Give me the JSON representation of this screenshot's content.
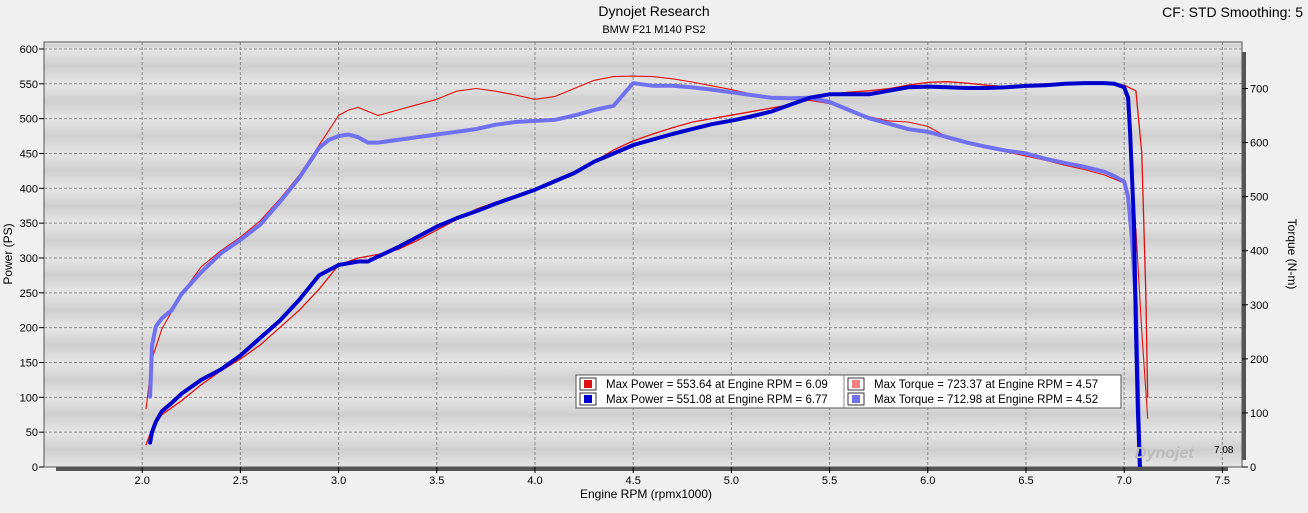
{
  "chart_data": {
    "type": "line",
    "title": "Dynojet Research",
    "subtitle": "BMW F21 M140 PS2",
    "corner_text": "CF: STD Smoothing: 5",
    "xlabel": "Engine RPM (rpmx1000)",
    "ylabel_left": "Power (PS)",
    "ylabel_right": "Torque (N-m)",
    "xlim": [
      1.5,
      7.6
    ],
    "ylim_left": [
      0,
      610
    ],
    "ylim_right": [
      0,
      786
    ],
    "x_ticks": [
      "2.0",
      "2.5",
      "3.0",
      "3.5",
      "4.0",
      "4.5",
      "5.0",
      "5.5",
      "6.0",
      "6.5",
      "7.0",
      "7.5"
    ],
    "y_ticks_left": [
      "0",
      "50",
      "100",
      "150",
      "200",
      "250",
      "300",
      "350",
      "400",
      "450",
      "500",
      "550",
      "600"
    ],
    "y_ticks_right": [
      "0",
      "100",
      "200",
      "300",
      "400",
      "500",
      "600",
      "700"
    ],
    "grid": true,
    "end_label": "7.08",
    "logo_text": "Dynojet",
    "legend": {
      "placement": "bottom-center",
      "entries": [
        {
          "color": "#e01010",
          "text": "Max Power = 553.64 at Engine RPM = 6.09"
        },
        {
          "color": "#f08080",
          "text": "Max Torque = 723.37 at Engine RPM = 4.57"
        },
        {
          "color": "#0000cc",
          "text": "Max Power = 551.08 at Engine RPM = 6.77"
        },
        {
          "color": "#7070f0",
          "text": "Max Torque = 712.98 at Engine RPM = 4.52"
        }
      ]
    },
    "series": [
      {
        "axis": "left",
        "color": "#e01010",
        "width": 1.3,
        "x": [
          2.02,
          2.05,
          2.1,
          2.2,
          2.3,
          2.4,
          2.5,
          2.6,
          2.7,
          2.8,
          2.9,
          3.0,
          3.1,
          3.2,
          3.3,
          3.4,
          3.5,
          3.6,
          3.7,
          3.8,
          3.9,
          4.0,
          4.1,
          4.2,
          4.3,
          4.4,
          4.5,
          4.6,
          4.7,
          4.8,
          4.9,
          5.0,
          5.1,
          5.2,
          5.3,
          5.4,
          5.5,
          5.6,
          5.7,
          5.8,
          5.9,
          6.0,
          6.1,
          6.2,
          6.3,
          6.4,
          6.5,
          6.6,
          6.7,
          6.8,
          6.9,
          7.0,
          7.06,
          7.09,
          7.11,
          7.12
        ],
        "y": [
          32,
          55,
          75,
          95,
          118,
          138,
          155,
          175,
          200,
          225,
          255,
          290,
          300,
          305,
          312,
          325,
          340,
          355,
          370,
          380,
          388,
          397,
          408,
          420,
          438,
          455,
          468,
          478,
          487,
          495,
          500,
          505,
          510,
          515,
          520,
          527,
          535,
          538,
          540,
          543,
          548,
          552,
          553,
          551,
          548,
          546,
          548,
          550,
          550,
          551,
          550,
          548,
          540,
          450,
          250,
          100
        ]
      },
      {
        "axis": "right",
        "color": "#e01010",
        "width": 1.1,
        "x": [
          2.02,
          2.05,
          2.1,
          2.2,
          2.3,
          2.4,
          2.5,
          2.6,
          2.7,
          2.8,
          2.9,
          3.0,
          3.05,
          3.1,
          3.2,
          3.3,
          3.4,
          3.5,
          3.6,
          3.7,
          3.8,
          3.9,
          4.0,
          4.1,
          4.2,
          4.3,
          4.4,
          4.5,
          4.6,
          4.7,
          4.8,
          4.9,
          5.0,
          5.1,
          5.2,
          5.3,
          5.4,
          5.5,
          5.6,
          5.7,
          5.8,
          5.9,
          6.0,
          6.1,
          6.2,
          6.3,
          6.4,
          6.5,
          6.6,
          6.7,
          6.8,
          6.9,
          7.0,
          7.06,
          7.09,
          7.12
        ],
        "y": [
          108,
          200,
          255,
          320,
          370,
          400,
          425,
          455,
          495,
          540,
          595,
          650,
          660,
          665,
          650,
          660,
          670,
          680,
          695,
          700,
          695,
          688,
          680,
          685,
          700,
          715,
          722,
          723,
          722,
          718,
          712,
          705,
          698,
          690,
          685,
          680,
          678,
          672,
          660,
          648,
          640,
          638,
          630,
          610,
          600,
          590,
          583,
          575,
          567,
          558,
          550,
          540,
          525,
          440,
          250,
          90
        ]
      },
      {
        "axis": "right",
        "color": "#7070f0",
        "width": 4,
        "x": [
          2.04,
          2.05,
          2.07,
          2.1,
          2.15,
          2.2,
          2.3,
          2.4,
          2.5,
          2.6,
          2.7,
          2.8,
          2.9,
          2.95,
          3.0,
          3.05,
          3.1,
          3.15,
          3.2,
          3.3,
          3.4,
          3.5,
          3.6,
          3.7,
          3.8,
          3.9,
          4.0,
          4.1,
          4.2,
          4.3,
          4.4,
          4.5,
          4.6,
          4.7,
          4.8,
          4.9,
          5.0,
          5.1,
          5.2,
          5.3,
          5.4,
          5.5,
          5.6,
          5.7,
          5.8,
          5.9,
          6.0,
          6.1,
          6.2,
          6.3,
          6.4,
          6.5,
          6.6,
          6.7,
          6.8,
          6.9,
          6.95,
          7.0,
          7.02,
          7.04,
          7.06,
          7.07,
          7.08
        ],
        "y": [
          130,
          225,
          260,
          275,
          290,
          320,
          360,
          395,
          420,
          448,
          490,
          535,
          590,
          605,
          612,
          615,
          610,
          600,
          600,
          605,
          610,
          615,
          620,
          625,
          633,
          638,
          640,
          642,
          650,
          660,
          668,
          710,
          705,
          705,
          702,
          698,
          693,
          688,
          683,
          682,
          683,
          675,
          660,
          645,
          635,
          625,
          620,
          610,
          600,
          592,
          585,
          580,
          570,
          562,
          555,
          546,
          538,
          528,
          500,
          420,
          300,
          150,
          0
        ]
      },
      {
        "axis": "left",
        "color": "#0000cc",
        "width": 4,
        "x": [
          2.04,
          2.05,
          2.07,
          2.1,
          2.15,
          2.2,
          2.3,
          2.4,
          2.5,
          2.6,
          2.7,
          2.8,
          2.9,
          3.0,
          3.1,
          3.15,
          3.2,
          3.3,
          3.4,
          3.5,
          3.6,
          3.7,
          3.8,
          3.9,
          4.0,
          4.1,
          4.2,
          4.3,
          4.4,
          4.5,
          4.6,
          4.7,
          4.8,
          4.9,
          5.0,
          5.1,
          5.2,
          5.3,
          5.4,
          5.5,
          5.6,
          5.7,
          5.8,
          5.9,
          6.0,
          6.1,
          6.2,
          6.3,
          6.4,
          6.5,
          6.6,
          6.7,
          6.8,
          6.9,
          6.95,
          7.0,
          7.02,
          7.03,
          7.05,
          7.06,
          7.07,
          7.08
        ],
        "y": [
          35,
          50,
          65,
          80,
          92,
          105,
          125,
          140,
          160,
          185,
          210,
          240,
          275,
          290,
          295,
          295,
          302,
          315,
          330,
          345,
          357,
          367,
          378,
          388,
          398,
          410,
          422,
          438,
          450,
          462,
          470,
          478,
          485,
          492,
          497,
          503,
          510,
          520,
          530,
          535,
          535,
          535,
          540,
          545,
          546,
          545,
          544,
          544,
          545,
          547,
          548,
          550,
          551,
          551,
          550,
          545,
          530,
          480,
          350,
          200,
          80,
          0
        ]
      }
    ]
  }
}
